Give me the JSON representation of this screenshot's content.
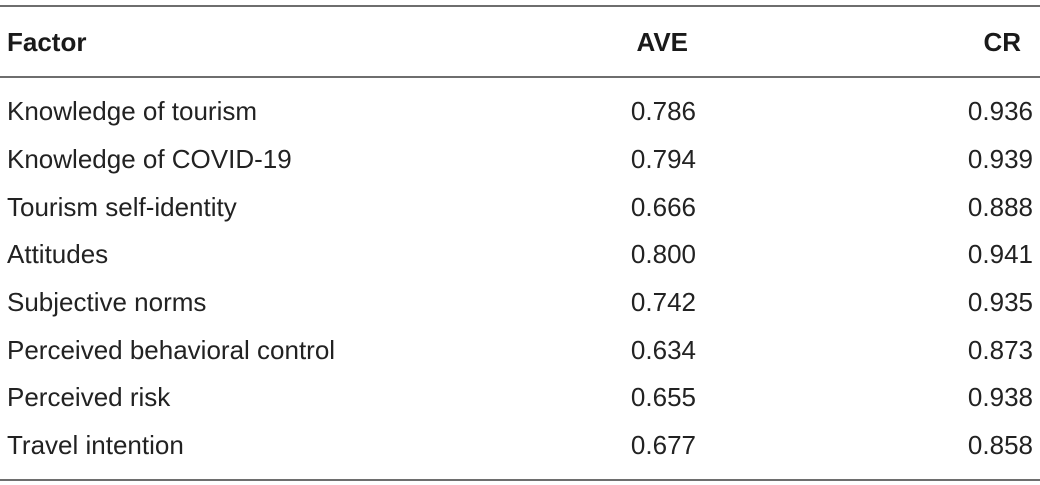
{
  "table": {
    "headers": {
      "factor": "Factor",
      "ave": "AVE",
      "cr": "CR"
    },
    "rows": [
      {
        "factor": "Knowledge of tourism",
        "ave": "0.786",
        "cr": "0.936"
      },
      {
        "factor": "Knowledge of COVID-19",
        "ave": "0.794",
        "cr": "0.939"
      },
      {
        "factor": "Tourism self-identity",
        "ave": "0.666",
        "cr": "0.888"
      },
      {
        "factor": "Attitudes",
        "ave": "0.800",
        "cr": "0.941"
      },
      {
        "factor": "Subjective norms",
        "ave": "0.742",
        "cr": "0.935"
      },
      {
        "factor": "Perceived behavioral control",
        "ave": "0.634",
        "cr": "0.873"
      },
      {
        "factor": "Perceived risk",
        "ave": "0.655",
        "cr": "0.938"
      },
      {
        "factor": "Travel intention",
        "ave": "0.677",
        "cr": "0.858"
      }
    ]
  }
}
